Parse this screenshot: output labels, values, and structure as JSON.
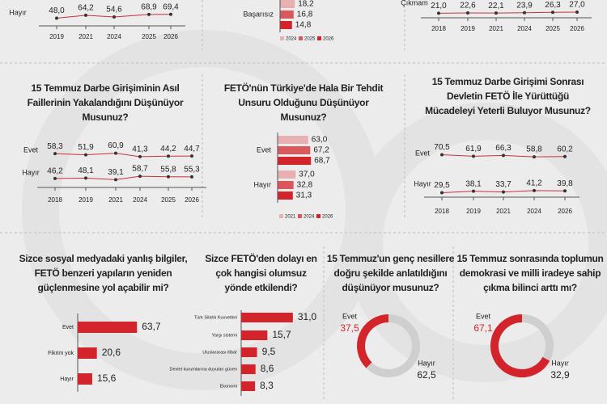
{
  "chart_data": [
    {
      "type": "line",
      "categories": [
        "2019",
        "2021",
        "2024",
        "2025",
        "2026"
      ],
      "series": [
        {
          "name": "Hayır",
          "color": "#c8323c",
          "values": [
            48.0,
            64.2,
            54.6,
            68.9,
            69.4
          ],
          "value_labels": [
            "48,0",
            "64,2",
            "54,6",
            "68,9",
            "69,4"
          ]
        }
      ]
    },
    {
      "type": "hbar_group",
      "categories": [
        "Başarısız"
      ],
      "series": [
        {
          "name": "2024",
          "color": "#e8b0b0",
          "values": [
            18.2
          ],
          "value_labels": [
            "18,2"
          ]
        },
        {
          "name": "2025",
          "color": "#d9585c",
          "values": [
            16.8
          ],
          "value_labels": [
            "16,8"
          ]
        },
        {
          "name": "2026",
          "color": "#d3242b",
          "values": [
            14.8
          ],
          "value_labels": [
            "14,8"
          ]
        }
      ]
    },
    {
      "type": "line",
      "categories": [
        "2018",
        "2019",
        "2021",
        "2024",
        "2025",
        "2026"
      ],
      "series": [
        {
          "name": "Çıkmam",
          "color": "#c8323c",
          "values": [
            21.0,
            22.6,
            22.1,
            23.9,
            26.3,
            27.0
          ],
          "value_labels": [
            "21,0",
            "22,6",
            "22,1",
            "23,9",
            "26,3",
            "27,0"
          ]
        }
      ]
    },
    {
      "type": "line",
      "title": "15 Temmuz Darbe Girişiminin Asıl Faillerinin Yakalandığını Düşünüyor Musunuz?",
      "categories": [
        "2018",
        "2019",
        "2021",
        "2024",
        "2025",
        "2026"
      ],
      "series": [
        {
          "name": "Evet",
          "color": "#c8323c",
          "values": [
            58.3,
            51.9,
            60.9,
            41.3,
            44.2,
            44.7
          ],
          "value_labels": [
            "58,3",
            "51,9",
            "60,9",
            "41,3",
            "44,2",
            "44,7"
          ]
        },
        {
          "name": "Hayır",
          "color": "#c8323c",
          "values": [
            46.2,
            48.1,
            39.1,
            58.7,
            55.8,
            55.3
          ],
          "value_labels": [
            "46,2",
            "48,1",
            "39,1",
            "58,7",
            "55,8",
            "55,3"
          ]
        }
      ]
    },
    {
      "type": "hbar_group",
      "title": "FETÖ'nün Türkiye'de Hala Bir Tehdit Unsuru Olduğunu Düşünüyor Musunuz?",
      "categories": [
        "Evet",
        "Hayır"
      ],
      "series": [
        {
          "name": "2021",
          "color": "#e8b0b0",
          "values": [
            63.0,
            37.0
          ],
          "value_labels": [
            "63,0",
            "37,0"
          ]
        },
        {
          "name": "2024",
          "color": "#d9585c",
          "values": [
            67.2,
            32.8
          ],
          "value_labels": [
            "67,2",
            "32,8"
          ]
        },
        {
          "name": "2026",
          "color": "#d3242b",
          "values": [
            68.7,
            31.3
          ],
          "value_labels": [
            "68,7",
            "31,3"
          ]
        }
      ]
    },
    {
      "type": "line",
      "title": "15 Temmuz Darbe Girişimi Sonrası Devletin FETÖ İle Yürüttüğü Mücadeleyi Yeterli Buluyor Musunuz?",
      "categories": [
        "2018",
        "2019",
        "2021",
        "2024",
        "2026"
      ],
      "series": [
        {
          "name": "Evet",
          "color": "#c8323c",
          "values": [
            70.5,
            61.9,
            66.3,
            58.8,
            60.2
          ],
          "value_labels": [
            "70,5",
            "61,9",
            "66,3",
            "58,8",
            "60,2"
          ]
        },
        {
          "name": "Hayır",
          "color": "#c8323c",
          "values": [
            29.5,
            38.1,
            33.7,
            41.2,
            39.8
          ],
          "value_labels": [
            "29,5",
            "38,1",
            "33,7",
            "41,2",
            "39,8"
          ]
        }
      ]
    },
    {
      "type": "hbar",
      "title": "Sizce sosyal medyadaki yanlış bilgiler, FETÖ benzeri yapıların yeniden güçlenmesine yol açabilir mi?",
      "categories": [
        "Evet",
        "Fikrim yok",
        "Hayır"
      ],
      "color": "#d3242b",
      "values": [
        63.7,
        20.6,
        15.6
      ],
      "value_labels": [
        "63,7",
        "20,6",
        "15,6"
      ]
    },
    {
      "type": "hbar",
      "title": "Sizce FETÖ'den dolayı en çok hangisi olumsuz yönde etkilendi?",
      "categories": [
        "Türk Silahlı Kuvvetleri",
        "Yargı sistemi",
        "Uluslararası itibar",
        "Devlet kurumlarına duyulan güven",
        "Ekonomi"
      ],
      "color": "#d3242b",
      "values": [
        31.0,
        15.7,
        9.5,
        8.6,
        8.3
      ],
      "value_labels": [
        "31,0",
        "15,7",
        "9,5",
        "8,6",
        "8,3"
      ]
    },
    {
      "type": "donut",
      "title": "15 Temmuz'un genç nesillere doğru şekilde anlatıldığını düşünüyor musunuz?",
      "categories": [
        "Evet",
        "Hayır"
      ],
      "colors": [
        "#d3242b",
        "#cfcfcf"
      ],
      "values": [
        37.5,
        62.5
      ],
      "value_labels": [
        "37,5",
        "62,5"
      ]
    },
    {
      "type": "donut",
      "title": "15 Temmuz sonrasında toplumun demokrasi ve milli iradeye sahip çıkma bilinci arttı mı?",
      "categories": [
        "Evet",
        "Hayır"
      ],
      "colors": [
        "#d3242b",
        "#cfcfcf"
      ],
      "values": [
        67.1,
        32.9
      ],
      "value_labels": [
        "67,1",
        "32,9"
      ]
    }
  ]
}
